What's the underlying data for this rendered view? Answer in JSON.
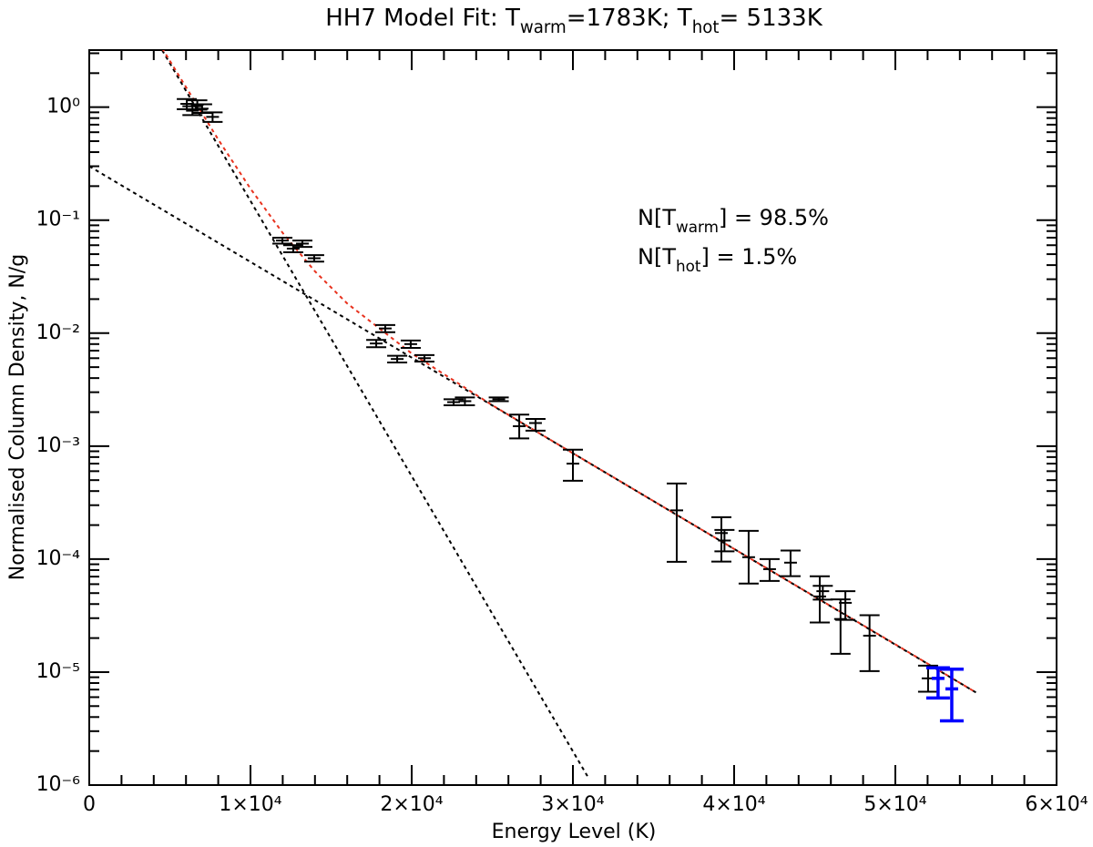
{
  "chart_data": {
    "type": "scatter",
    "title": [
      "HH7 Model Fit: T",
      "warm",
      "=1783K; T",
      "hot",
      "= 5133K"
    ],
    "x_label": "Energy Level (K)",
    "y_label": "Normalised Column Density, N/g",
    "annotations": [
      [
        "N[T",
        "warm",
        "] = 98.5%"
      ],
      [
        "N[T",
        "hot",
        "]   =  1.5%"
      ]
    ],
    "log_y": true,
    "xlim": [
      0,
      60000
    ],
    "ylim": [
      1e-06,
      3.2
    ],
    "xticks": [
      0,
      {
        "value": 10000,
        "label": "1×10⁴"
      },
      {
        "value": 20000,
        "label": "2×10⁴"
      },
      {
        "value": 30000,
        "label": "3×10⁴"
      },
      {
        "value": 40000,
        "label": "4×10⁴"
      },
      {
        "value": 50000,
        "label": "5×10⁴"
      },
      {
        "value": 60000,
        "label": "6×10⁴"
      }
    ],
    "xminorticks": [
      2000,
      4000,
      6000,
      8000,
      12000,
      14000,
      16000,
      18000,
      22000,
      24000,
      26000,
      28000,
      32000,
      34000,
      36000,
      38000,
      42000,
      44000,
      46000,
      48000,
      52000,
      54000,
      56000,
      58000
    ],
    "yticks": [
      {
        "value": 1e-06,
        "label": "10⁻⁶"
      },
      {
        "value": 1e-05,
        "label": "10⁻⁵"
      },
      {
        "value": 0.0001,
        "label": "10⁻⁴"
      },
      {
        "value": 0.001,
        "label": "10⁻³"
      },
      {
        "value": 0.01,
        "label": "10⁻²"
      },
      {
        "value": 0.1,
        "label": "10⁻¹"
      },
      {
        "value": 1,
        "label": "10⁰"
      }
    ],
    "yminorticks": [
      2e-06,
      3e-06,
      4e-06,
      5e-06,
      6e-06,
      7e-06,
      8e-06,
      9e-06,
      2e-05,
      3e-05,
      4e-05,
      5e-05,
      6e-05,
      7e-05,
      8e-05,
      9e-05,
      0.0002,
      0.0003,
      0.0004,
      0.0005,
      0.0006,
      0.0007,
      0.0008,
      0.0009,
      0.002,
      0.003,
      0.004,
      0.005,
      0.006,
      0.007,
      0.008,
      0.009,
      0.02,
      0.03,
      0.04,
      0.05,
      0.06,
      0.07,
      0.08,
      0.09,
      0.2,
      0.3,
      0.4,
      0.5,
      0.6,
      0.7,
      0.8,
      0.9,
      2,
      3
    ],
    "series": [
      {
        "color": "#000000",
        "x": [
          6050,
          6400,
          6700,
          7000,
          7650,
          11980,
          12650,
          13220,
          13950,
          17800,
          18360,
          19100,
          19940,
          20790,
          22600,
          23300,
          25400,
          26670,
          27680,
          30000,
          36440,
          39210,
          39400,
          40900,
          42200,
          43500,
          45310,
          45500,
          46600,
          46900,
          48400,
          52030
        ],
        "values": [
          1.07,
          0.93,
          1.05,
          0.97,
          0.82,
          0.066,
          0.056,
          0.062,
          0.046,
          0.0081,
          0.011,
          0.0059,
          0.008,
          0.006,
          0.00245,
          0.0025,
          0.0026,
          0.0015,
          0.0016,
          0.0007,
          0.00027,
          0.00017,
          0.000146,
          0.000104,
          8.15e-05,
          9.3e-05,
          4.67e-05,
          5.2e-05,
          2.95e-05,
          4.1e-05,
          2.1e-05,
          8.8e-06
        ],
        "err_low": [
          0.96,
          0.85,
          0.95,
          0.89,
          0.74,
          0.062,
          0.052,
          0.058,
          0.043,
          0.0075,
          0.0102,
          0.0055,
          0.0074,
          0.0056,
          0.0023,
          0.0023,
          0.0025,
          0.00117,
          0.00137,
          0.000493,
          9.46e-05,
          9.5e-05,
          0.000117,
          6.08e-05,
          6.41e-05,
          7.07e-05,
          2.75e-05,
          4.38e-05,
          1.45e-05,
          2.9e-05,
          1.02e-05,
          6.7e-06
        ],
        "err_high": [
          1.18,
          1.02,
          1.15,
          1.06,
          0.9,
          0.07,
          0.06,
          0.066,
          0.049,
          0.0087,
          0.0118,
          0.0063,
          0.0086,
          0.0064,
          0.0026,
          0.0027,
          0.0027,
          0.0019,
          0.00174,
          0.00093,
          0.000467,
          0.000235,
          0.000181,
          0.000178,
          0.0001,
          0.000119,
          7.04e-05,
          5.8e-05,
          4.4e-05,
          5.2e-05,
          3.19e-05,
          1.14e-05
        ]
      },
      {
        "color": "#0000ff",
        "x": [
          52650,
          53500
        ],
        "values": [
          8.8e-06,
          7.1e-06
        ],
        "err_low": [
          5.9e-06,
          3.7e-06
        ],
        "err_high": [
          1.09e-05,
          1.06e-05
        ]
      }
    ],
    "model_lines": [
      {
        "color": "#000000",
        "x": [
          4520,
          30900
        ],
        "values": [
          3.2,
          1.2e-06
        ]
      },
      {
        "color": "#000000",
        "x": [
          0,
          55000
        ],
        "values": [
          0.3,
          6.6e-06
        ]
      },
      {
        "color": "#e8321e",
        "x": [
          4520,
          8000,
          10000,
          12000,
          14000,
          16000,
          20000,
          25000,
          30000,
          40000,
          50000,
          55000
        ],
        "values": [
          3.32,
          0.517,
          0.19,
          0.077,
          0.0352,
          0.0183,
          0.00661,
          0.0023,
          0.000865,
          0.000123,
          1.76e-05,
          6.6e-06
        ]
      }
    ]
  }
}
